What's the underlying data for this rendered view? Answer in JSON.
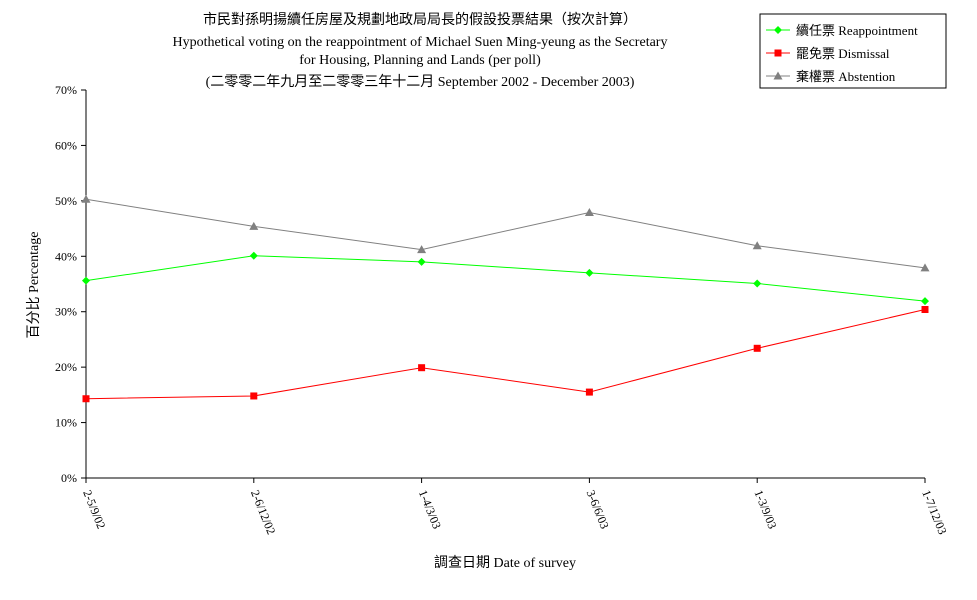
{
  "chart_data": {
    "type": "line",
    "title": "市民對孫明揚續任房屋及規劃地政局局長的假設投票結果（按次計算）",
    "subtitle": [
      "Hypothetical voting on the reappointment of Michael Suen Ming-yeung as the Secretary",
      "for Housing, Planning and Lands (per poll)",
      "(二零零二年九月至二零零三年十二月 September 2002 - December 2003)"
    ],
    "xlabel": "調查日期 Date of survey",
    "ylabel": "百分比 Percentage",
    "categories": [
      "2-5/9/02",
      "2-6/12/02",
      "1-4/3/03",
      "3-6/6/03",
      "1-3/9/03",
      "1-7/12/03"
    ],
    "ylim": [
      0,
      70
    ],
    "yticks": [
      "0%",
      "10%",
      "20%",
      "30%",
      "40%",
      "50%",
      "60%",
      "70%"
    ],
    "grid": false,
    "legend_position": "top-right",
    "series": [
      {
        "name": "續任票 Reappointment",
        "color": "#00ff00",
        "marker": "diamond",
        "values": [
          35.6,
          40.1,
          39.0,
          37.0,
          35.1,
          31.9
        ]
      },
      {
        "name": "罷免票 Dismissal",
        "color": "#ff0000",
        "marker": "square",
        "values": [
          14.3,
          14.8,
          19.9,
          15.5,
          23.4,
          30.4
        ]
      },
      {
        "name": "棄權票 Abstention",
        "color": "#808080",
        "marker": "triangle",
        "values": [
          50.3,
          45.4,
          41.2,
          47.9,
          41.9,
          37.9
        ]
      }
    ]
  }
}
